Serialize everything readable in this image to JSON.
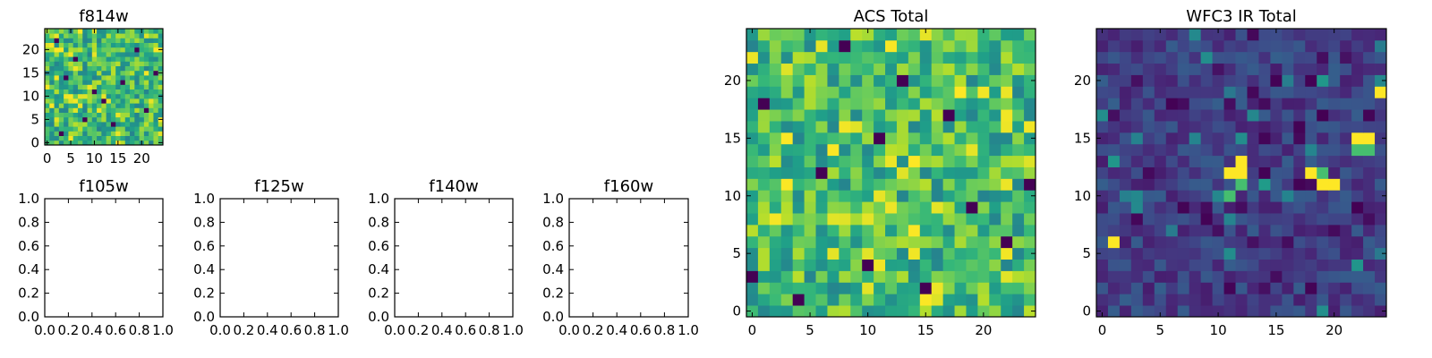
{
  "figure": {
    "colormap": "viridis",
    "background": "#ffffff"
  },
  "chart_data": [
    {
      "id": "f814w",
      "type": "heatmap",
      "title": "f814w",
      "grid_size": 25,
      "xlim": [
        -0.5,
        24.5
      ],
      "ylim": [
        -0.5,
        24.5
      ],
      "xticks": [
        0,
        5,
        10,
        15,
        20
      ],
      "yticks": [
        0,
        5,
        10,
        15,
        20
      ],
      "xtick_labels": [
        "0",
        "5",
        "10",
        "15",
        "20"
      ],
      "ytick_labels": [
        "0",
        "5",
        "10",
        "15",
        "20"
      ],
      "value_range": [
        0,
        1
      ],
      "pattern": "noise_high",
      "seed": 11,
      "dark_cells": [
        [
          3,
          2
        ],
        [
          8,
          5
        ],
        [
          12,
          9
        ],
        [
          16,
          13
        ],
        [
          21,
          7
        ],
        [
          6,
          18
        ],
        [
          19,
          20
        ],
        [
          2,
          22
        ],
        [
          14,
          4
        ],
        [
          23,
          15
        ],
        [
          10,
          11
        ],
        [
          4,
          14
        ]
      ]
    },
    {
      "id": "f105w",
      "type": "heatmap",
      "title": "f105w",
      "empty": true,
      "xlim": [
        0,
        1
      ],
      "ylim": [
        0,
        1
      ],
      "xticks": [
        0,
        0.2,
        0.4,
        0.6,
        0.8,
        1.0
      ],
      "yticks": [
        0,
        0.2,
        0.4,
        0.6,
        0.8,
        1.0
      ],
      "xtick_labels": [
        "0.0",
        "0.2",
        "0.4",
        "0.6",
        "0.8",
        "1.0"
      ],
      "ytick_labels": [
        "0.0",
        "0.2",
        "0.4",
        "0.6",
        "0.8",
        "1.0"
      ]
    },
    {
      "id": "f125w",
      "type": "heatmap",
      "title": "f125w",
      "empty": true,
      "xlim": [
        0,
        1
      ],
      "ylim": [
        0,
        1
      ],
      "xticks": [
        0,
        0.2,
        0.4,
        0.6,
        0.8,
        1.0
      ],
      "yticks": [
        0,
        0.2,
        0.4,
        0.6,
        0.8,
        1.0
      ],
      "xtick_labels": [
        "0.0",
        "0.2",
        "0.4",
        "0.6",
        "0.8",
        "1.0"
      ],
      "ytick_labels": [
        "0.0",
        "0.2",
        "0.4",
        "0.6",
        "0.8",
        "1.0"
      ]
    },
    {
      "id": "f140w",
      "type": "heatmap",
      "title": "f140w",
      "empty": true,
      "xlim": [
        0,
        1
      ],
      "ylim": [
        0,
        1
      ],
      "xticks": [
        0,
        0.2,
        0.4,
        0.6,
        0.8,
        1.0
      ],
      "yticks": [
        0,
        0.2,
        0.4,
        0.6,
        0.8,
        1.0
      ],
      "xtick_labels": [
        "0.0",
        "0.2",
        "0.4",
        "0.6",
        "0.8",
        "1.0"
      ],
      "ytick_labels": [
        "0.0",
        "0.2",
        "0.4",
        "0.6",
        "0.8",
        "1.0"
      ]
    },
    {
      "id": "f160w",
      "type": "heatmap",
      "title": "f160w",
      "empty": true,
      "xlim": [
        0,
        1
      ],
      "ylim": [
        0,
        1
      ],
      "xticks": [
        0,
        0.2,
        0.4,
        0.6,
        0.8,
        1.0
      ],
      "yticks": [
        0,
        0.2,
        0.4,
        0.6,
        0.8,
        1.0
      ],
      "xtick_labels": [
        "0.0",
        "0.2",
        "0.4",
        "0.6",
        "0.8",
        "1.0"
      ],
      "ytick_labels": [
        "0.0",
        "0.2",
        "0.4",
        "0.6",
        "0.8",
        "1.0"
      ]
    },
    {
      "id": "acs_total",
      "type": "heatmap",
      "title": "ACS Total",
      "grid_size": 25,
      "xlim": [
        -0.5,
        24.5
      ],
      "ylim": [
        -0.5,
        24.5
      ],
      "xticks": [
        0,
        5,
        10,
        15,
        20
      ],
      "yticks": [
        0,
        5,
        10,
        15,
        20
      ],
      "xtick_labels": [
        "0",
        "5",
        "10",
        "15",
        "20"
      ],
      "ytick_labels": [
        "0",
        "5",
        "10",
        "15",
        "20"
      ],
      "value_range": [
        0,
        1
      ],
      "pattern": "noise_high",
      "seed": 37,
      "dark_cells": [
        [
          1,
          18
        ],
        [
          6,
          12
        ],
        [
          8,
          23
        ],
        [
          11,
          15
        ],
        [
          15,
          2
        ],
        [
          19,
          9
        ],
        [
          22,
          6
        ],
        [
          0,
          3
        ],
        [
          13,
          20
        ],
        [
          17,
          17
        ],
        [
          4,
          1
        ],
        [
          24,
          11
        ],
        [
          10,
          4
        ]
      ]
    },
    {
      "id": "wfc3_ir_total",
      "type": "heatmap",
      "title": "WFC3 IR Total",
      "grid_size": 25,
      "xlim": [
        -0.5,
        24.5
      ],
      "ylim": [
        -0.5,
        24.5
      ],
      "xticks": [
        0,
        5,
        10,
        15,
        20
      ],
      "yticks": [
        0,
        5,
        10,
        15,
        20
      ],
      "xtick_labels": [
        "0",
        "5",
        "10",
        "15",
        "20"
      ],
      "ytick_labels": [
        "0",
        "5",
        "10",
        "15",
        "20"
      ],
      "value_range": [
        0,
        1
      ],
      "pattern": "noise_low",
      "seed": 53,
      "bright_cells": [
        [
          12,
          12
        ],
        [
          12,
          13
        ],
        [
          12,
          11
        ],
        [
          11,
          12
        ],
        [
          19,
          11
        ],
        [
          19,
          12
        ],
        [
          20,
          11
        ],
        [
          18,
          12
        ],
        [
          22,
          14
        ],
        [
          23,
          15
        ],
        [
          22,
          15
        ],
        [
          23,
          14
        ],
        [
          24,
          19
        ],
        [
          1,
          6
        ],
        [
          11,
          10
        ]
      ]
    }
  ]
}
